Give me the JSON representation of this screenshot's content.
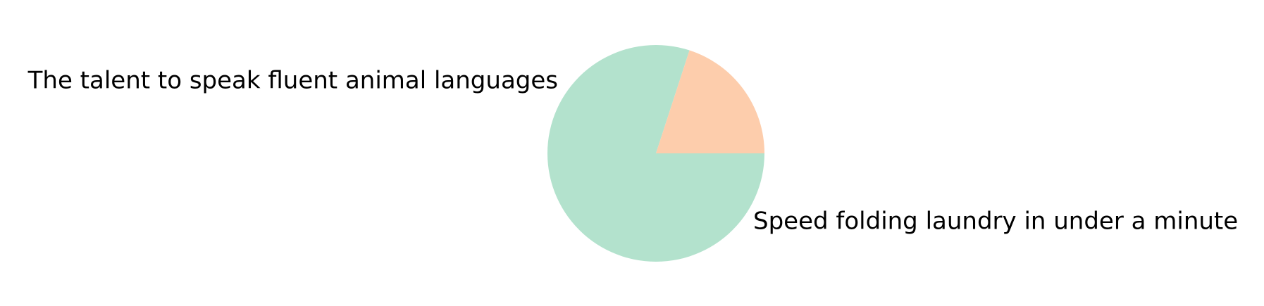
{
  "chart_data": {
    "type": "pie",
    "title": "",
    "start_angle_deg": 0,
    "direction": "clockwise",
    "slices": [
      {
        "label": "The talent to speak fluent animal languages",
        "value": 80,
        "color": "#b3e2cd"
      },
      {
        "label": "Speed folding laundry in under a minute",
        "value": 20,
        "color": "#fdcdac"
      }
    ]
  }
}
